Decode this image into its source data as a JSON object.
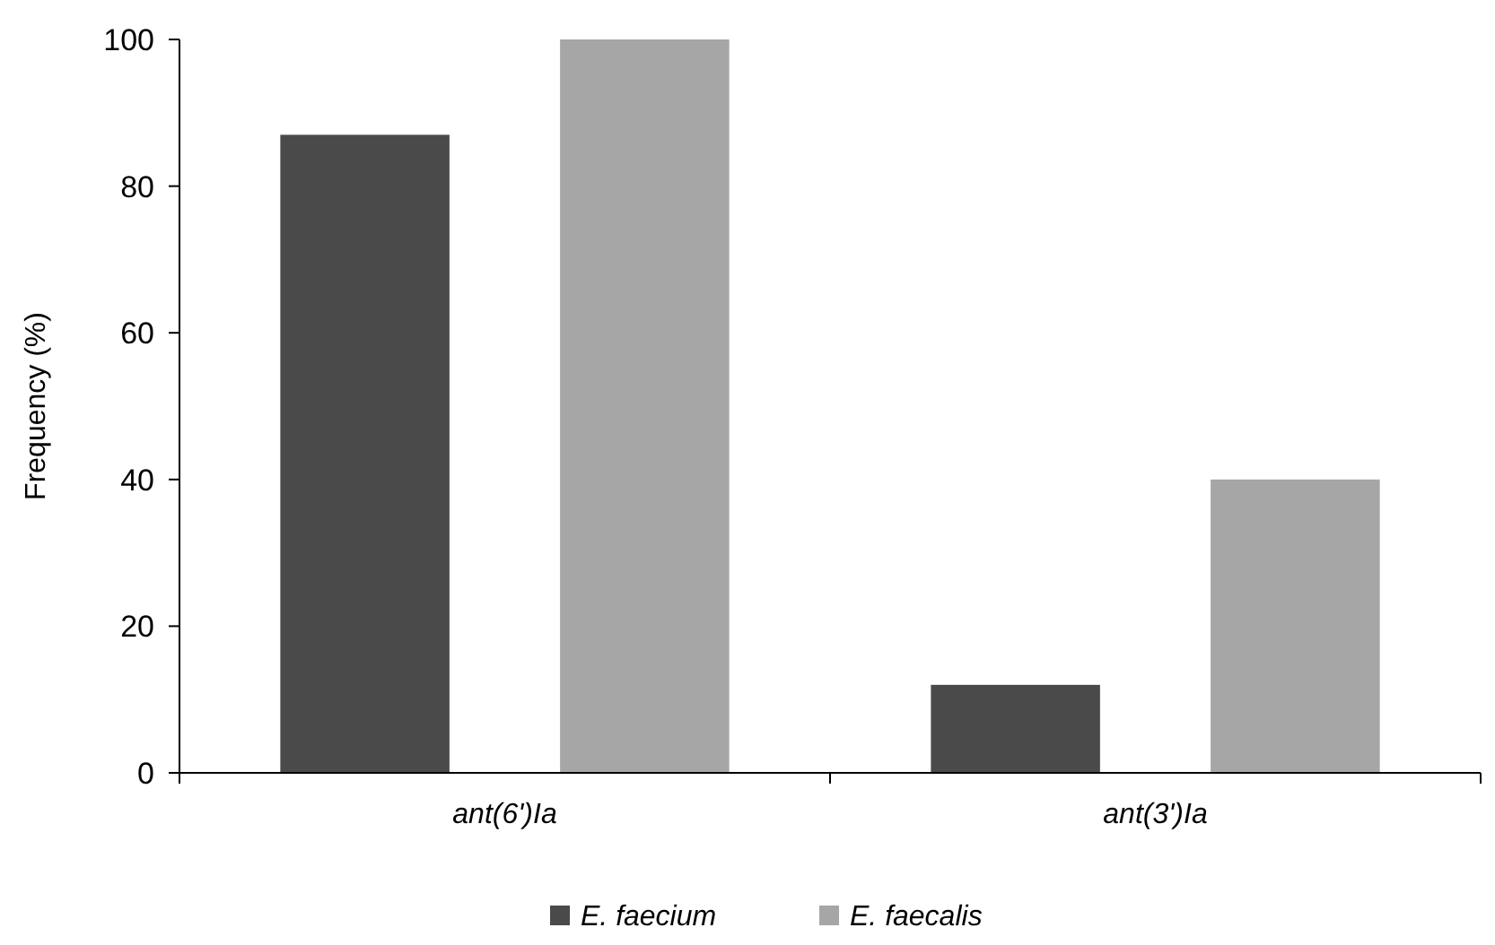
{
  "chart_data": {
    "type": "bar",
    "ylabel": "Frequency (%)",
    "categories": [
      "ant(6')Ia",
      "ant(3')Ia"
    ],
    "series": [
      {
        "name": "E. faecium",
        "color": "#4a4a4a",
        "values": [
          87,
          12
        ]
      },
      {
        "name": "E. faecalis",
        "color": "#a6a6a6",
        "values": [
          100,
          40
        ]
      }
    ],
    "ylim": [
      0,
      100
    ],
    "yticks": [
      0,
      20,
      40,
      60,
      80,
      100
    ],
    "grid": false,
    "legend": "bottom"
  }
}
